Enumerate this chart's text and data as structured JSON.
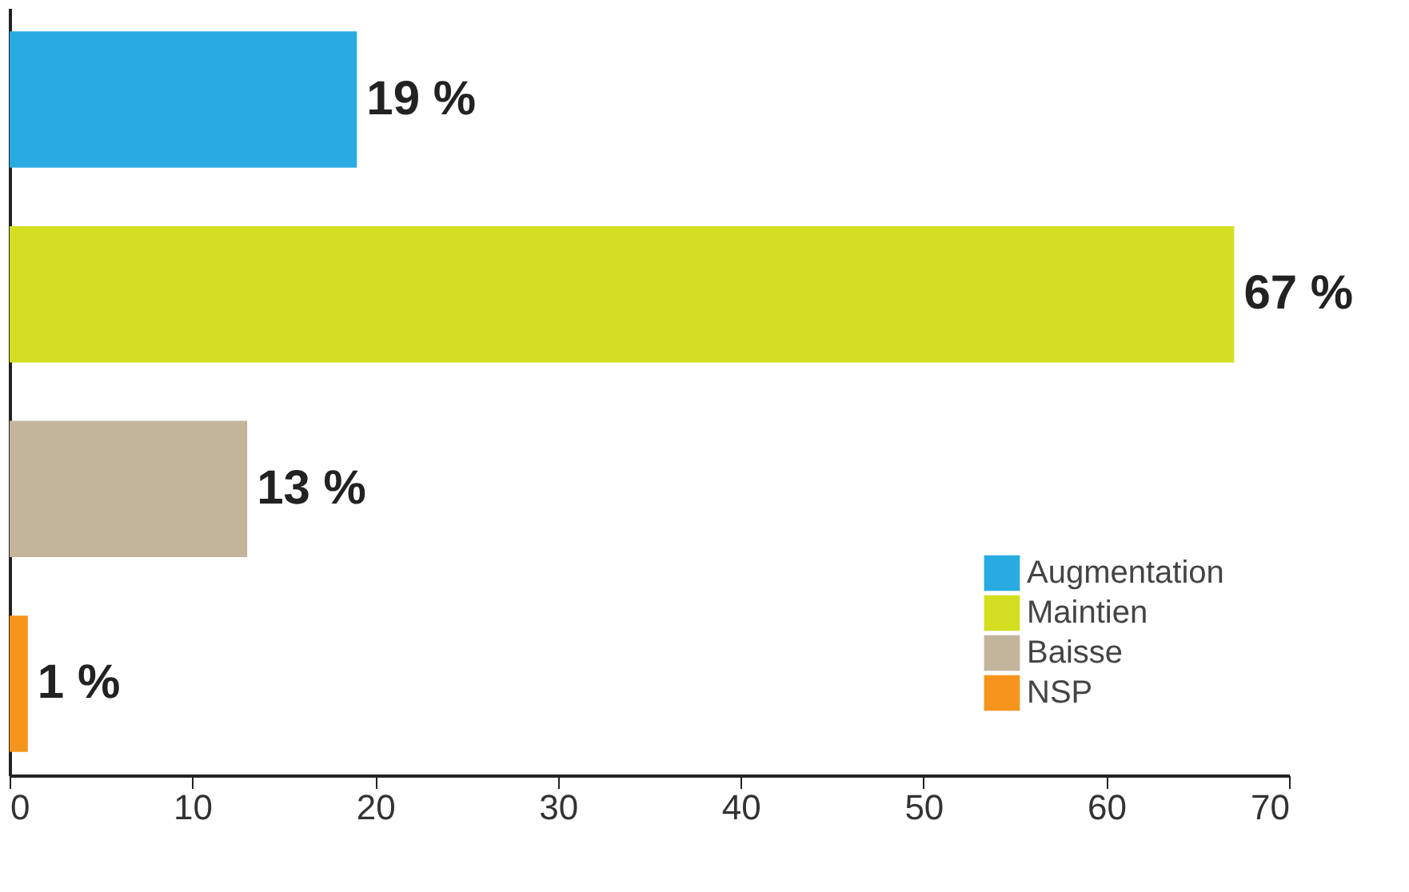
{
  "chart_data": {
    "type": "bar",
    "orientation": "horizontal",
    "categories": [
      null,
      null,
      null,
      null
    ],
    "series": [
      {
        "name": "Augmentation",
        "color": "#29abe2",
        "values": [
          19,
          null,
          null,
          null
        ],
        "value_labels": [
          "19 %",
          null,
          null,
          null
        ]
      },
      {
        "name": "Maintien",
        "color": "#d4df21",
        "values": [
          null,
          67,
          null,
          null
        ],
        "value_labels": [
          null,
          "67 %",
          null,
          null
        ]
      },
      {
        "name": "Baisse",
        "color": "#c2b59b",
        "values": [
          null,
          null,
          13,
          null
        ],
        "value_labels": [
          null,
          null,
          "13 %",
          null
        ]
      },
      {
        "name": "NSP",
        "color": "#f7941d",
        "values": [
          null,
          null,
          null,
          1
        ],
        "value_labels": [
          null,
          null,
          null,
          "1 %"
        ]
      }
    ],
    "xlim": [
      0,
      70
    ],
    "xticks": [
      0,
      10,
      20,
      30,
      40,
      50,
      60,
      70
    ],
    "grid": false,
    "legend": "bottom right",
    "tick_labels": "x"
  }
}
